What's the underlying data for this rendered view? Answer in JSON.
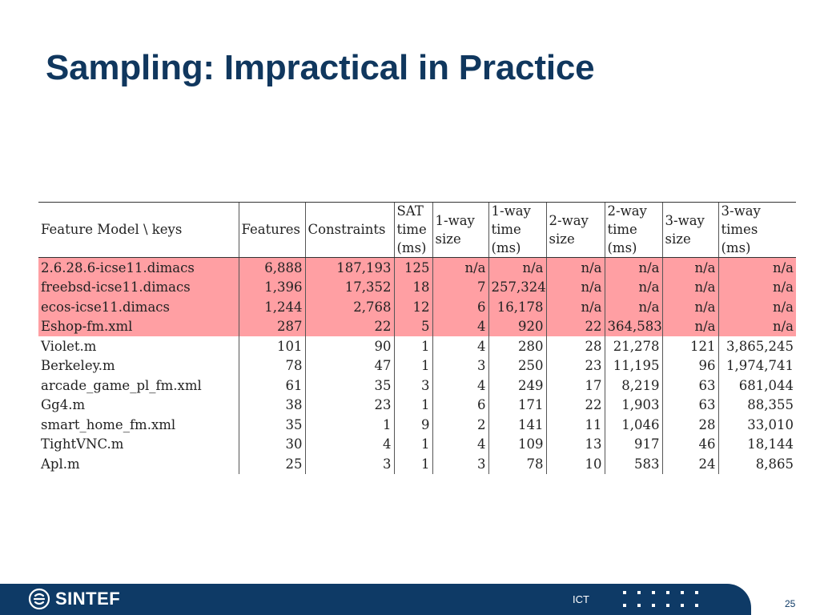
{
  "slide": {
    "title": "Sampling: Impractical in Practice"
  },
  "table": {
    "headers": [
      [
        "Feature Model \\ keys"
      ],
      [
        "Features"
      ],
      [
        "Constraints"
      ],
      [
        "SAT",
        "time",
        "(ms)"
      ],
      [
        "1-way",
        "size"
      ],
      [
        "1-way",
        "time",
        "(ms)"
      ],
      [
        "2-way",
        "size"
      ],
      [
        "2-way",
        "time",
        "(ms)"
      ],
      [
        "3-way",
        "size"
      ],
      [
        "3-way",
        "times",
        "(ms)"
      ]
    ],
    "highlight_color": "#ff9fa3",
    "rows": [
      {
        "highlight": true,
        "cells": [
          "2.6.28.6-icse11.dimacs",
          "6,888",
          "187,193",
          "125",
          "n/a",
          "n/a",
          "n/a",
          "n/a",
          "n/a",
          "n/a"
        ]
      },
      {
        "highlight": true,
        "cells": [
          "freebsd-icse11.dimacs",
          "1,396",
          "17,352",
          "18",
          "7",
          "257,324",
          "n/a",
          "n/a",
          "n/a",
          "n/a"
        ]
      },
      {
        "highlight": true,
        "cells": [
          "ecos-icse11.dimacs",
          "1,244",
          "2,768",
          "12",
          "6",
          "16,178",
          "n/a",
          "n/a",
          "n/a",
          "n/a"
        ]
      },
      {
        "highlight": true,
        "cells": [
          "Eshop-fm.xml",
          "287",
          "22",
          "5",
          "4",
          "920",
          "22",
          "364,583",
          "n/a",
          "n/a"
        ]
      },
      {
        "highlight": false,
        "cells": [
          "Violet.m",
          "101",
          "90",
          "1",
          "4",
          "280",
          "28",
          "21,278",
          "121",
          "3,865,245"
        ]
      },
      {
        "highlight": false,
        "cells": [
          "Berkeley.m",
          "78",
          "47",
          "1",
          "3",
          "250",
          "23",
          "11,195",
          "96",
          "1,974,741"
        ]
      },
      {
        "highlight": false,
        "cells": [
          "arcade_game_pl_fm.xml",
          "61",
          "35",
          "3",
          "4",
          "249",
          "17",
          "8,219",
          "63",
          "681,044"
        ]
      },
      {
        "highlight": false,
        "cells": [
          "Gg4.m",
          "38",
          "23",
          "1",
          "6",
          "171",
          "22",
          "1,903",
          "63",
          "88,355"
        ]
      },
      {
        "highlight": false,
        "cells": [
          "smart_home_fm.xml",
          "35",
          "1",
          "9",
          "2",
          "141",
          "11",
          "1,046",
          "28",
          "33,010"
        ]
      },
      {
        "highlight": false,
        "cells": [
          "TightVNC.m",
          "30",
          "4",
          "1",
          "4",
          "109",
          "13",
          "917",
          "46",
          "18,144"
        ]
      },
      {
        "highlight": false,
        "cells": [
          "Apl.m",
          "25",
          "3",
          "1",
          "3",
          "78",
          "10",
          "583",
          "24",
          "8,865"
        ]
      }
    ]
  },
  "footer": {
    "brand": "SINTEF",
    "unit": "ICT",
    "page_number": "25",
    "bar_color": "#0e3a66"
  }
}
